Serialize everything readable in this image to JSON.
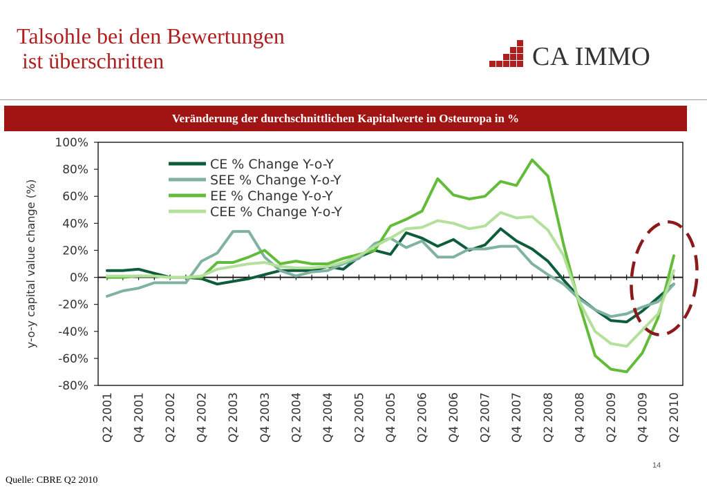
{
  "header": {
    "title_line1": "Talsohle bei den Bewertungen",
    "title_line2": " ist überschritten",
    "logo_text": "CA IMMO"
  },
  "banner": {
    "text": "Veränderung der durchschnittlichen Kapitalwerte in Osteuropa in %"
  },
  "footer": {
    "source": "Quelle: CBRE Q2 2010",
    "page_number": "14"
  },
  "colors": {
    "brand_red": "#a11414",
    "title_red": "#b01f1f",
    "ce": "#0d5c3a",
    "see": "#7fb2a0",
    "ee": "#63bb3a",
    "cee": "#b3e09a",
    "highlight_circle": "#8b1a1a"
  },
  "chart_data": {
    "type": "line",
    "title": "",
    "xlabel": "",
    "ylabel": "y-o-y capital value change (%)",
    "ylim": [
      -80,
      100
    ],
    "yticks": [
      100,
      80,
      60,
      40,
      20,
      0,
      -20,
      -40,
      -60,
      -80
    ],
    "ytick_labels": [
      "100%",
      "80%",
      "60%",
      "40%",
      "20%",
      "0%",
      "-20%",
      "-40%",
      "-60%",
      "-80%"
    ],
    "x": [
      "Q2 2001",
      "Q3 2001",
      "Q4 2001",
      "Q1 2002",
      "Q2 2002",
      "Q3 2002",
      "Q4 2002",
      "Q1 2003",
      "Q2 2003",
      "Q3 2003",
      "Q4 2003",
      "Q1 2004",
      "Q2 2004",
      "Q3 2004",
      "Q4 2004",
      "Q1 2005",
      "Q2 2005",
      "Q3 2005",
      "Q4 2005",
      "Q1 2006",
      "Q2 2006",
      "Q3 2006",
      "Q4 2006",
      "Q1 2007",
      "Q2 2007",
      "Q3 2007",
      "Q4 2007",
      "Q1 2008",
      "Q2 2008",
      "Q3 2008",
      "Q4 2008",
      "Q1 2009",
      "Q2 2009",
      "Q3 2009",
      "Q4 2009",
      "Q1 2010",
      "Q2 2010"
    ],
    "xtick_labels": [
      "Q2 2001",
      "Q4 2001",
      "Q2 2002",
      "Q4 2002",
      "Q2 2003",
      "Q4 2003",
      "Q2 2004",
      "Q4 2004",
      "Q2 2005",
      "Q4 2005",
      "Q2 2006",
      "Q4 2006",
      "Q2 2007",
      "Q4 2007",
      "Q2 2008",
      "Q4 2008",
      "Q2 2009",
      "Q4 2009",
      "Q2 2010"
    ],
    "legend_position": "top-left",
    "series": [
      {
        "name": "CE % Change Y-o-Y",
        "color": "#0d5c3a",
        "values": [
          5,
          5,
          6,
          3,
          0,
          0,
          -1,
          -5,
          -3,
          -1,
          2,
          5,
          5,
          5,
          8,
          6,
          15,
          20,
          17,
          33,
          29,
          23,
          28,
          20,
          24,
          36,
          27,
          21,
          12,
          -2,
          -15,
          -24,
          -32,
          -33,
          -25,
          -15,
          -5
        ]
      },
      {
        "name": "SEE % Change Y-o-Y",
        "color": "#7fb2a0",
        "values": [
          -14,
          -10,
          -8,
          -4,
          -4,
          -4,
          12,
          18,
          34,
          34,
          15,
          5,
          1,
          4,
          5,
          10,
          14,
          25,
          29,
          22,
          27,
          15,
          15,
          21,
          21,
          23,
          23,
          10,
          2,
          -5,
          -16,
          -24,
          -29,
          -27,
          -22,
          -18,
          -5
        ]
      },
      {
        "name": "EE % Change Y-o-Y",
        "color": "#63bb3a",
        "values": [
          0,
          0,
          1,
          1,
          0,
          0,
          0,
          11,
          11,
          15,
          20,
          10,
          12,
          10,
          10,
          14,
          17,
          20,
          38,
          43,
          49,
          73,
          61,
          58,
          60,
          71,
          68,
          87,
          75,
          24,
          -20,
          -58,
          -68,
          -70,
          -56,
          -30,
          16
        ]
      },
      {
        "name": "CEE % Change Y-o-Y",
        "color": "#b3e09a",
        "values": [
          1,
          1,
          1,
          1,
          0,
          0,
          1,
          6,
          8,
          10,
          11,
          8,
          7,
          7,
          8,
          11,
          16,
          23,
          29,
          36,
          37,
          42,
          40,
          36,
          38,
          48,
          44,
          45,
          35,
          16,
          -18,
          -40,
          -49,
          -51,
          -39,
          -27,
          5
        ]
      }
    ]
  }
}
